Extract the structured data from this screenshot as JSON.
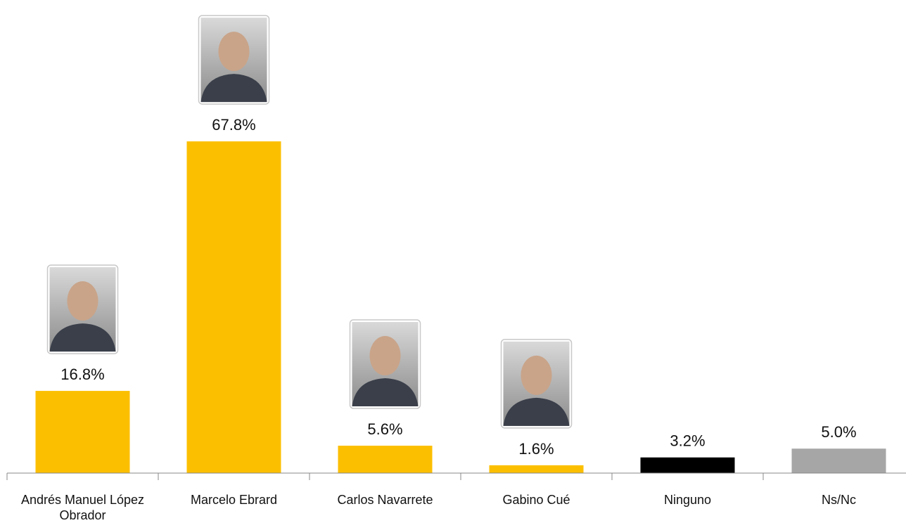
{
  "chart_data": {
    "type": "bar",
    "categories": [
      "Andrés Manuel López Obrador",
      "Marcelo Ebrard",
      "Carlos Navarrete",
      "Gabino Cué",
      "Ninguno",
      "Ns/Nc"
    ],
    "values": [
      16.8,
      67.8,
      5.6,
      1.6,
      3.2,
      5.0
    ],
    "value_labels": [
      "16.8%",
      "67.8%",
      "5.6%",
      "1.6%",
      "3.2%",
      "5.0%"
    ],
    "colors": [
      "#fcbf00",
      "#fcbf00",
      "#fcbf00",
      "#fcbf00",
      "#000000",
      "#a6a6a6"
    ]
  }
}
